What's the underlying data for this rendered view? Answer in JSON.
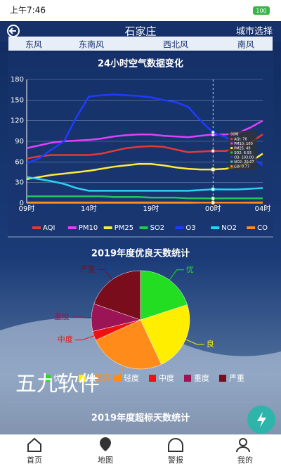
{
  "status_bar": {
    "time": "上午7:46",
    "battery": "100"
  },
  "header": {
    "title": "石家庄",
    "action": "城市选择"
  },
  "wind_row": [
    "东风",
    "东南风",
    "西北风",
    "南风"
  ],
  "chart_data": [
    {
      "type": "line",
      "title": "24小时空气数据变化",
      "categories": [
        "09时",
        null,
        null,
        null,
        null,
        "14时",
        null,
        null,
        null,
        null,
        "19时",
        null,
        null,
        null,
        null,
        "00时",
        null,
        null,
        null,
        "04时"
      ],
      "ylim": [
        0,
        180
      ],
      "yticks": [
        0,
        30,
        60,
        90,
        120,
        150,
        180
      ],
      "grid": true,
      "legend": "bottom",
      "series": [
        {
          "name": "AQI",
          "color": "#e53935",
          "values": [
            65,
            68,
            70,
            70,
            70,
            70,
            72,
            76,
            80,
            82,
            83,
            82,
            78,
            74,
            75,
            76,
            76,
            80,
            88,
            100
          ]
        },
        {
          "name": "PM10",
          "color": "#e040fb",
          "values": [
            80,
            84,
            88,
            90,
            91,
            92,
            94,
            97,
            99,
            100,
            100,
            98,
            97,
            96,
            98,
            100,
            100,
            102,
            110,
            120
          ]
        },
        {
          "name": "PM25",
          "color": "#ffeb3b",
          "values": [
            35,
            38,
            41,
            43,
            45,
            47,
            50,
            53,
            55,
            57,
            57,
            55,
            52,
            50,
            49,
            49,
            50,
            53,
            60,
            72
          ]
        },
        {
          "name": "SO2",
          "color": "#22c55e",
          "values": [
            10,
            10,
            10,
            10,
            10,
            10,
            10,
            9,
            9,
            9,
            8,
            8,
            8,
            7,
            7,
            6.93,
            7,
            7,
            7,
            7
          ]
        },
        {
          "name": "O3",
          "color": "#1e3cff",
          "values": [
            58,
            65,
            78,
            90,
            125,
            155,
            157,
            158,
            157,
            156,
            154,
            150,
            147,
            140,
            120,
            103,
            96,
            85,
            68,
            55
          ]
        },
        {
          "name": "NO2",
          "color": "#29d3f5",
          "values": [
            38,
            35,
            32,
            28,
            22,
            18,
            18,
            18,
            18,
            18,
            18,
            18,
            18,
            18,
            19,
            20.17,
            20,
            20,
            21,
            22
          ]
        },
        {
          "name": "CO",
          "color": "#ff8c1a",
          "values": [
            1,
            1,
            1,
            1,
            1,
            1,
            1,
            1,
            1,
            1,
            1,
            1,
            1,
            1,
            0.8,
            0.77,
            0.8,
            0.8,
            0.9,
            1
          ]
        }
      ],
      "tooltip": {
        "title": "00时",
        "lines": [
          "AQI: 76",
          "PM10: 100",
          "PM25: 49",
          "SO2: 6.93",
          "O3: 103.00",
          "NO2: 20.17",
          "CO: 0.77"
        ]
      }
    },
    {
      "type": "pie",
      "title": "2019年度优良天数统计",
      "legend": "bottom",
      "categories": [
        "优",
        "良",
        "轻度",
        "中度",
        "重度",
        "严重"
      ],
      "values": [
        73,
        84,
        92,
        11,
        33,
        72
      ],
      "colors": [
        "#22dd22",
        "#ffee00",
        "#ff8c1a",
        "#ee1111",
        "#9b1455",
        "#7a0d1c"
      ]
    }
  ],
  "next_section_title": "2019年度超标天数统计",
  "watermark": "五九软件",
  "nav": [
    "首页",
    "地图",
    "警报",
    "我的"
  ]
}
